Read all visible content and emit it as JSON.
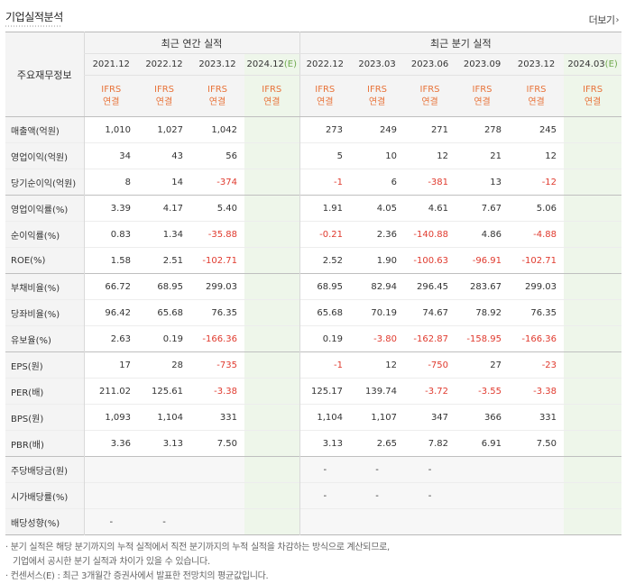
{
  "title": "기업실적분석",
  "more_link": "더보기",
  "row_header_label": "주요재무정보",
  "annual_header": "최근 연간 실적",
  "quarter_header": "최근 분기 실적",
  "annual_periods": [
    "2021.12",
    "2022.12",
    "2023.12",
    "2024.12(E)"
  ],
  "quarter_periods": [
    "2022.12",
    "2023.03",
    "2023.06",
    "2023.09",
    "2023.12",
    "2024.03(E)"
  ],
  "estimate_marker": "(E)",
  "ifrs_label": "IFRS",
  "consol_label": "연결",
  "rows": [
    {
      "label": "매출액(억원)",
      "annual": [
        "1,010",
        "1,027",
        "1,042",
        ""
      ],
      "quarter": [
        "273",
        "249",
        "271",
        "278",
        "245",
        ""
      ]
    },
    {
      "label": "영업이익(억원)",
      "annual": [
        "34",
        "43",
        "56",
        ""
      ],
      "quarter": [
        "5",
        "10",
        "12",
        "21",
        "12",
        ""
      ]
    },
    {
      "label": "당기순이익(억원)",
      "annual": [
        "8",
        "14",
        "-374",
        ""
      ],
      "quarter": [
        "-1",
        "6",
        "-381",
        "13",
        "-12",
        ""
      ]
    },
    {
      "label": "영업이익률(%)",
      "annual": [
        "3.39",
        "4.17",
        "5.40",
        ""
      ],
      "quarter": [
        "1.91",
        "4.05",
        "4.61",
        "7.67",
        "5.06",
        ""
      ]
    },
    {
      "label": "순이익률(%)",
      "annual": [
        "0.83",
        "1.34",
        "-35.88",
        ""
      ],
      "quarter": [
        "-0.21",
        "2.36",
        "-140.88",
        "4.86",
        "-4.88",
        ""
      ]
    },
    {
      "label": "ROE(%)",
      "annual": [
        "1.58",
        "2.51",
        "-102.71",
        ""
      ],
      "quarter": [
        "2.52",
        "1.90",
        "-100.63",
        "-96.91",
        "-102.71",
        ""
      ]
    },
    {
      "label": "부채비율(%)",
      "annual": [
        "66.72",
        "68.95",
        "299.03",
        ""
      ],
      "quarter": [
        "68.95",
        "82.94",
        "296.45",
        "283.67",
        "299.03",
        ""
      ]
    },
    {
      "label": "당좌비율(%)",
      "annual": [
        "96.42",
        "65.68",
        "76.35",
        ""
      ],
      "quarter": [
        "65.68",
        "70.19",
        "74.67",
        "78.92",
        "76.35",
        ""
      ]
    },
    {
      "label": "유보율(%)",
      "annual": [
        "2.63",
        "0.19",
        "-166.36",
        ""
      ],
      "quarter": [
        "0.19",
        "-3.80",
        "-162.87",
        "-158.95",
        "-166.36",
        ""
      ]
    },
    {
      "label": "EPS(원)",
      "annual": [
        "17",
        "28",
        "-735",
        ""
      ],
      "quarter": [
        "-1",
        "12",
        "-750",
        "27",
        "-23",
        ""
      ]
    },
    {
      "label": "PER(배)",
      "annual": [
        "211.02",
        "125.61",
        "-3.38",
        ""
      ],
      "quarter": [
        "125.17",
        "139.74",
        "-3.72",
        "-3.55",
        "-3.38",
        ""
      ]
    },
    {
      "label": "BPS(원)",
      "annual": [
        "1,093",
        "1,104",
        "331",
        ""
      ],
      "quarter": [
        "1,104",
        "1,107",
        "347",
        "366",
        "331",
        ""
      ]
    },
    {
      "label": "PBR(배)",
      "annual": [
        "3.36",
        "3.13",
        "7.50",
        ""
      ],
      "quarter": [
        "3.13",
        "2.65",
        "7.82",
        "6.91",
        "7.50",
        ""
      ]
    },
    {
      "label": "주당배당금(원)",
      "annual": [
        "",
        "",
        "",
        ""
      ],
      "quarter": [
        "-",
        "-",
        "-",
        "",
        "",
        ""
      ]
    },
    {
      "label": "시가배당률(%)",
      "annual": [
        "",
        "",
        "",
        ""
      ],
      "quarter": [
        "-",
        "-",
        "-",
        "",
        "",
        ""
      ]
    },
    {
      "label": "배당성향(%)",
      "annual": [
        "-",
        "-",
        "",
        ""
      ],
      "quarter": [
        "",
        "",
        "",
        "",
        "",
        ""
      ]
    }
  ],
  "notes": [
    "· 분기 실적은 해당 분기까지의 누적 실적에서 직전 분기까지의 누적 실적을 차감하는 방식으로 계산되므로,",
    "기업에서 공시한 분기 실적과 차이가 있을 수 있습니다.",
    "· 컨센서스(E) : 최근 3개월간 증권사에서 발표한 전망치의 평균값입니다."
  ],
  "colors": {
    "negative": "#e03a2e",
    "ifrs": "#e8733a",
    "estimate_bg": "#eef6ea",
    "estimate_marker": "#6da84c",
    "header_bg": "#f4f4f4"
  }
}
